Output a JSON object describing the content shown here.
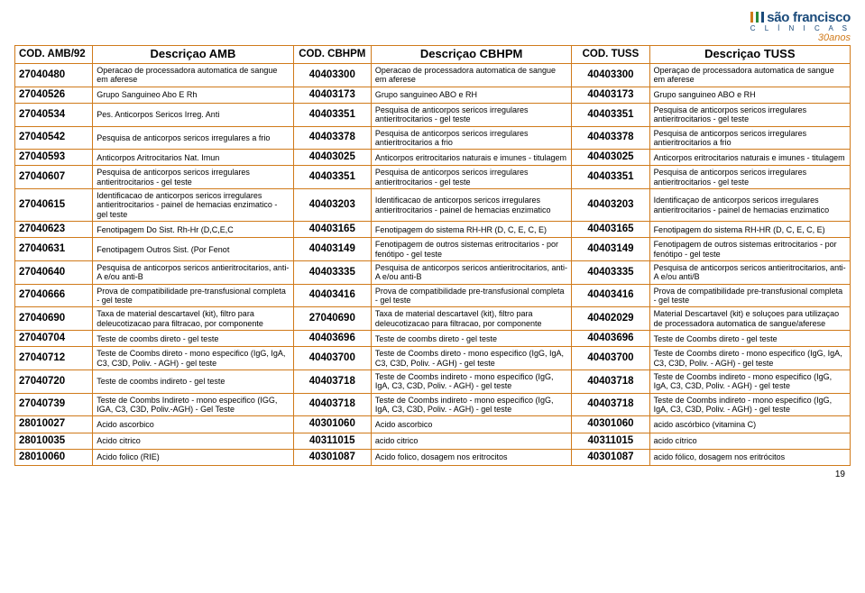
{
  "brand": {
    "name": "são francisco",
    "sub": "C L Í N I C A S",
    "years": "30anos",
    "stripes": [
      "#d07a1a",
      "#2a8a3a",
      "#1a4a7a"
    ]
  },
  "pageNumber": "19",
  "columns": [
    "COD. AMB/92",
    "Descriçao AMB",
    "COD. CBHPM",
    "Descriçao CBHPM",
    "COD. TUSS",
    "Descriçao TUSS"
  ],
  "rows": [
    [
      "27040480",
      "Operacao de processadora automatica de sangue em aferese",
      "40403300",
      "Operacao de processadora automatica de sangue em aferese",
      "40403300",
      "Operaçao de processadora automatica de sangue em aferese"
    ],
    [
      "27040526",
      "Grupo Sanguineo Abo E Rh",
      "40403173",
      "Grupo sanguineo ABO e RH",
      "40403173",
      "Grupo sanguineo ABO e RH"
    ],
    [
      "27040534",
      "Pes. Anticorpos Sericos Irreg. Anti",
      "40403351",
      "Pesquisa de anticorpos sericos irregulares antieritrocitarios - gel teste",
      "40403351",
      "Pesquisa de anticorpos sericos irregulares antieritrocitarios - gel teste"
    ],
    [
      "27040542",
      "Pesquisa de anticorpos sericos irregulares a frio",
      "40403378",
      "Pesquisa de anticorpos sericos irregulares antieritrocitarios a frio",
      "40403378",
      "Pesquisa de anticorpos sericos irregulares antieritrocitarios a frio"
    ],
    [
      "27040593",
      "Anticorpos Aritrocitarios Nat. Imun",
      "40403025",
      "Anticorpos eritrocitarios naturais e imunes - titulagem",
      "40403025",
      "Anticorpos eritrocitarios naturais e imunes - titulagem"
    ],
    [
      "27040607",
      "Pesquisa de anticorpos sericos irregulares antieritrocitarios - gel teste",
      "40403351",
      "Pesquisa de anticorpos sericos irregulares antieritrocitarios - gel teste",
      "40403351",
      "Pesquisa de anticorpos sericos irregulares antieritrocitarios - gel teste"
    ],
    [
      "27040615",
      "Identificacao de anticorpos sericos irregulares antieritrocitarios - painel de hemacias enzimatico - gel teste",
      "40403203",
      "Identificacao de anticorpos sericos irregulares antieritrocitarios - painel de hemacias enzimatico",
      "40403203",
      "Identificaçao de anticorpos sericos irregulares antieritrocitarios - painel de hemacias enzimatico"
    ],
    [
      "27040623",
      "Fenotipagem Do Sist. Rh-Hr (D,C,E,C",
      "40403165",
      "Fenotipagem do sistema RH-HR (D, C, E, C, E)",
      "40403165",
      "Fenotipagem do sistema RH-HR (D, C, E, C, E)"
    ],
    [
      "27040631",
      "Fenotipagem Outros Sist. (Por Fenot",
      "40403149",
      "Fenotipagem de outros sistemas eritrocitarios - por fenótipo - gel teste",
      "40403149",
      "Fenotipagem de outros sistemas eritrocitarios - por fenótipo - gel teste"
    ],
    [
      "27040640",
      "Pesquisa de anticorpos sericos antieritrocitarios, anti-A e/ou anti-B",
      "40403335",
      "Pesquisa de anticorpos sericos antieritrocitarios, anti-A e/ou anti-B",
      "40403335",
      "Pesquisa de anticorpos sericos antieritrocitarios, anti-A e/ou anti/B"
    ],
    [
      "27040666",
      "Prova de compatibilidade pre-transfusional completa - gel teste",
      "40403416",
      "Prova de compatibilidade pre-transfusional completa - gel teste",
      "40403416",
      "Prova de compatibilidade pre-transfusional completa - gel teste"
    ],
    [
      "27040690",
      "Taxa de material descartavel (kit), filtro para deleucotizacao para filtracao, por componente",
      "27040690",
      "Taxa de material descartavel (kit), filtro para deleucotizacao para filtracao, por componente",
      "40402029",
      "Material Descartavel (kit) e soluçoes para utilizaçao de processadora automatica de sangue/aferese"
    ],
    [
      "27040704",
      "Teste de coombs direto - gel teste",
      "40403696",
      "Teste de coombs direto - gel teste",
      "40403696",
      "Teste de Coombs direto - gel teste"
    ],
    [
      "27040712",
      "Teste de Coombs direto - mono especifico (IgG, IgA, C3, C3D, Poliv. - AGH) - gel teste",
      "40403700",
      "Teste de Coombs direto - mono especifico (IgG, IgA, C3, C3D, Poliv. - AGH) - gel teste",
      "40403700",
      "Teste de Coombs direto - mono especifico (IgG, IgA, C3, C3D, Poliv. - AGH) - gel teste"
    ],
    [
      "27040720",
      "Teste de coombs indireto - gel teste",
      "40403718",
      "Teste de Coombs indireto - mono especifico (IgG, IgA, C3, C3D, Poliv. - AGH) - gel teste",
      "40403718",
      "Teste de Coombs indireto - mono especifico (IgG, IgA, C3, C3D, Poliv. - AGH) - gel teste"
    ],
    [
      "27040739",
      "Teste de Coombs Indireto - mono especifico (IGG, IGA, C3, C3D, Poliv.-AGH) - Gel Teste",
      "40403718",
      "Teste de Coombs indireto - mono especifico (IgG, IgA, C3, C3D, Poliv. - AGH) - gel teste",
      "40403718",
      "Teste de Coombs indireto - mono especifico (IgG, IgA, C3, C3D, Poliv. - AGH) - gel teste"
    ],
    [
      "28010027",
      "Acido ascorbico",
      "40301060",
      "Acido ascorbico",
      "40301060",
      "acido ascórbico (vitamina C)"
    ],
    [
      "28010035",
      "Acido citrico",
      "40311015",
      "acido citrico",
      "40311015",
      "acido cítrico"
    ],
    [
      "28010060",
      "Acido folico (RIE)",
      "40301087",
      "Acido folico, dosagem nos eritrocitos",
      "40301087",
      "acido fólico, dosagem nos eritrócitos"
    ]
  ]
}
